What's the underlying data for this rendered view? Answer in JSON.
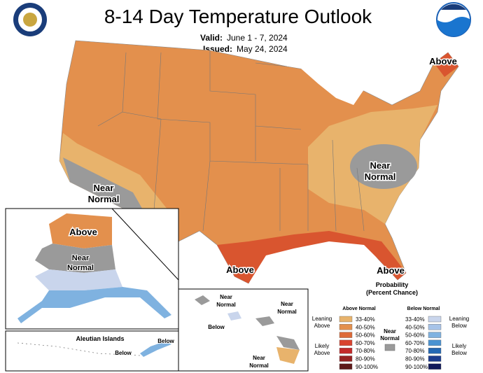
{
  "header": {
    "title": "8-14 Day Temperature Outlook",
    "valid_label": "Valid:",
    "valid_dates": "June 1 - 7, 2024",
    "issued_label": "Issued:",
    "issued_date": "May 24, 2024"
  },
  "contiguous_us": {
    "labels": [
      {
        "lines": [
          "Above"
        ]
      },
      {
        "lines": [
          "Near",
          "Normal"
        ]
      },
      {
        "lines": [
          "Near",
          "Normal"
        ]
      },
      {
        "lines": [
          "Above"
        ]
      },
      {
        "lines": [
          "Above"
        ]
      }
    ]
  },
  "alaska": {
    "labels": [
      {
        "lines": [
          "Above"
        ]
      },
      {
        "lines": [
          "Near",
          "Normal"
        ]
      }
    ]
  },
  "aleutian_islands": {
    "title": "Aleutian Islands",
    "labels": [
      {
        "lines": [
          "Below"
        ]
      },
      {
        "lines": [
          "Below"
        ]
      }
    ]
  },
  "hawaii": {
    "labels": [
      {
        "lines": [
          "Near",
          "Normal"
        ]
      },
      {
        "lines": [
          "Below"
        ]
      },
      {
        "lines": [
          "Near",
          "Normal"
        ]
      },
      {
        "lines": [
          "Near",
          "Normal"
        ]
      }
    ]
  },
  "legend": {
    "title": "Probability",
    "subtitle": "(Percent Chance)",
    "above_header": "Above Normal",
    "below_header": "Below Normal",
    "leaning_above": [
      "Leaning",
      "Above"
    ],
    "likely_above": [
      "Likely",
      "Above"
    ],
    "near_normal": [
      "Near",
      "Normal"
    ],
    "near_normal_color": "#9a9a9a",
    "leaning_below": [
      "Leaning",
      "Below"
    ],
    "likely_below": [
      "Likely",
      "Below"
    ],
    "above_items": [
      {
        "range": "33-40%",
        "color": "#e8b36c"
      },
      {
        "range": "40-50%",
        "color": "#e3904d"
      },
      {
        "range": "50-60%",
        "color": "#dd6a38"
      },
      {
        "range": "60-70%",
        "color": "#d9432f"
      },
      {
        "range": "70-80%",
        "color": "#c32a2a"
      },
      {
        "range": "80-90%",
        "color": "#962222"
      },
      {
        "range": "90-100%",
        "color": "#5e1a1a"
      }
    ],
    "below_items": [
      {
        "range": "33-40%",
        "color": "#c9d5ec"
      },
      {
        "range": "40-50%",
        "color": "#a7c3e8"
      },
      {
        "range": "50-60%",
        "color": "#7fb2e0"
      },
      {
        "range": "60-70%",
        "color": "#4a93d2"
      },
      {
        "range": "70-80%",
        "color": "#2468b4"
      },
      {
        "range": "80-90%",
        "color": "#1c3c8e"
      },
      {
        "range": "90-100%",
        "color": "#121a5a"
      }
    ]
  }
}
